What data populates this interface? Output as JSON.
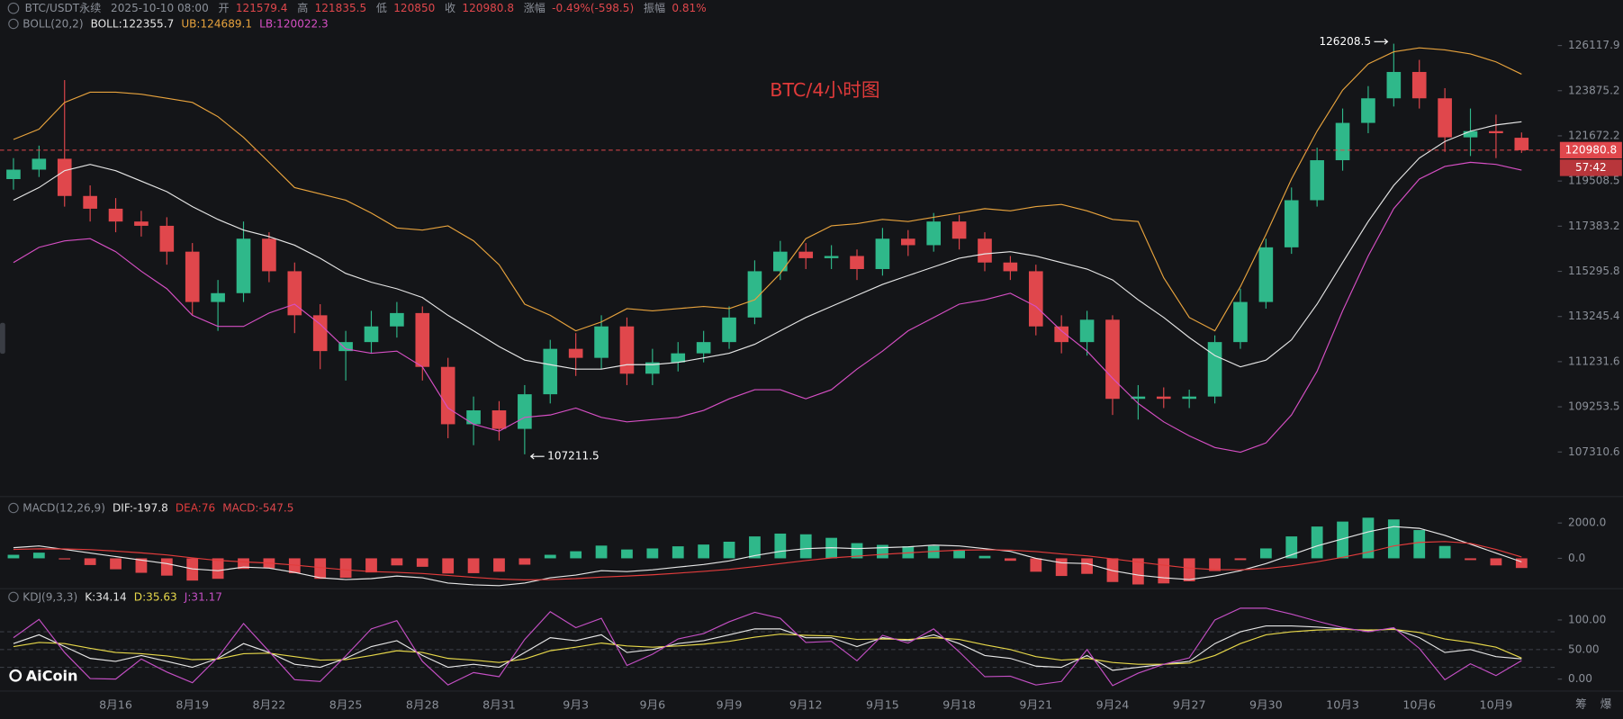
{
  "header": {
    "symbol": "BTC/USDT永续",
    "time": "2025-10-10 08:00",
    "open_label": "开",
    "high_label": "高",
    "low_label": "低",
    "close_label": "收",
    "change_label": "涨幅",
    "change": "-0.49%(-598.5)",
    "amplitude_label": "振幅",
    "amplitude": "0.81%"
  },
  "chart_data": [
    {
      "type": "candlestick",
      "title": "BTC/4小时图",
      "indicator": "BOLL(20,2)",
      "categories": [
        null,
        null,
        null,
        null,
        "8月16",
        null,
        null,
        "8月19",
        null,
        null,
        "8月22",
        null,
        null,
        "8月25",
        null,
        null,
        "8月28",
        null,
        null,
        "8月31",
        null,
        null,
        "9月3",
        null,
        null,
        "9月6",
        null,
        null,
        "9月9",
        null,
        null,
        "9月12",
        null,
        null,
        "9月15",
        null,
        null,
        "9月18",
        null,
        null,
        "9月21",
        null,
        null,
        "9月24",
        null,
        null,
        "9月27",
        null,
        null,
        "9月30",
        null,
        null,
        "10月3",
        null,
        null,
        "10月6",
        null,
        null,
        "10月9",
        null
      ],
      "open": [
        119600,
        120050,
        120570,
        118800,
        118200,
        117600,
        117400,
        116200,
        113900,
        114300,
        116800,
        115300,
        113300,
        111700,
        112100,
        112800,
        113400,
        111000,
        108500,
        109100,
        108300,
        109800,
        111800,
        111400,
        112800,
        110700,
        111200,
        111600,
        112100,
        113200,
        115300,
        116200,
        115900,
        116000,
        115400,
        116800,
        116500,
        117600,
        116800,
        115700,
        115300,
        112800,
        112100,
        113100,
        109600,
        109700,
        109600,
        109700,
        112100,
        113900,
        116400,
        118600,
        120500,
        122300,
        123500,
        124800,
        123500,
        121600,
        121900,
        121579.4
      ],
      "high": [
        120600,
        121200,
        124400,
        119300,
        118700,
        118100,
        117800,
        116600,
        114900,
        117600,
        117100,
        115700,
        113800,
        112600,
        113500,
        113900,
        113700,
        111400,
        109700,
        109500,
        110200,
        112200,
        112500,
        113300,
        113200,
        111800,
        112100,
        112600,
        113700,
        115800,
        116700,
        116600,
        116500,
        116300,
        117300,
        117200,
        118000,
        117900,
        117100,
        116000,
        115600,
        113300,
        113500,
        113300,
        110200,
        110100,
        110000,
        112400,
        114500,
        116800,
        119200,
        121100,
        123000,
        124100,
        126208.5,
        125400,
        124000,
        123000,
        122700,
        121835.5
      ],
      "low": [
        119100,
        119700,
        118300,
        117600,
        117100,
        116900,
        115600,
        113300,
        112600,
        113900,
        114800,
        112500,
        110900,
        110400,
        111600,
        112300,
        110400,
        107900,
        107600,
        107800,
        107211.5,
        109400,
        110600,
        110900,
        110200,
        110200,
        110800,
        111200,
        111800,
        112900,
        114900,
        115400,
        115400,
        114900,
        115100,
        116000,
        116200,
        116300,
        115300,
        114900,
        112400,
        111600,
        111500,
        108900,
        108700,
        109200,
        109200,
        109400,
        111800,
        113600,
        116100,
        118300,
        120000,
        121800,
        123100,
        123000,
        120900,
        120700,
        120600,
        120850.0
      ],
      "close": [
        120050,
        120570,
        118800,
        118200,
        117600,
        117400,
        116200,
        113900,
        114300,
        116800,
        115300,
        113300,
        111700,
        112100,
        112800,
        113400,
        111000,
        108500,
        109100,
        108300,
        109800,
        111800,
        111400,
        112800,
        110700,
        111200,
        111600,
        112100,
        113200,
        115300,
        116200,
        115900,
        116000,
        115400,
        116800,
        116500,
        117600,
        116800,
        115700,
        115300,
        112800,
        112100,
        113100,
        109600,
        109700,
        109600,
        109700,
        112100,
        113900,
        116400,
        118600,
        120500,
        122300,
        123500,
        124800,
        123500,
        121600,
        121900,
        121800,
        120980.8
      ],
      "up_color": "#2fb88a",
      "down_color": "#e0474c",
      "series": [
        {
          "name": "BOLL:",
          "color": "#e6e6e6",
          "values": [
            118600,
            119200,
            120000,
            120300,
            120000,
            119500,
            119000,
            118300,
            117700,
            117200,
            116900,
            116500,
            115900,
            115200,
            114800,
            114500,
            114100,
            113300,
            112600,
            111900,
            111300,
            111100,
            110900,
            110900,
            111100,
            111100,
            111200,
            111400,
            111600,
            112000,
            112600,
            113200,
            113700,
            114200,
            114700,
            115100,
            115500,
            115900,
            116100,
            116200,
            116000,
            115700,
            115400,
            114900,
            114000,
            113200,
            112300,
            111500,
            111000,
            111300,
            112200,
            113800,
            115700,
            117600,
            119300,
            120600,
            121400,
            121900,
            122200,
            122355.7
          ]
        },
        {
          "name": "UB:",
          "color": "#e8a33d",
          "values": [
            121500,
            122000,
            123300,
            123800,
            123800,
            123700,
            123500,
            123300,
            122600,
            121600,
            120400,
            119200,
            118900,
            118600,
            118000,
            117300,
            117200,
            117400,
            116700,
            115600,
            113800,
            113300,
            112600,
            113000,
            113600,
            113500,
            113600,
            113700,
            113600,
            114000,
            115200,
            116800,
            117400,
            117500,
            117700,
            117600,
            117800,
            118000,
            118200,
            118100,
            118300,
            118400,
            118100,
            117700,
            117600,
            115000,
            113200,
            112600,
            114600,
            117000,
            119600,
            121900,
            123900,
            125200,
            125800,
            126000,
            125900,
            125700,
            125300,
            124689.1
          ]
        },
        {
          "name": "LB:",
          "color": "#d64fc4",
          "values": [
            115700,
            116400,
            116700,
            116800,
            116200,
            115300,
            114500,
            113300,
            112800,
            112800,
            113400,
            113800,
            112900,
            111800,
            111600,
            111700,
            111000,
            109200,
            108500,
            108200,
            108800,
            108900,
            109200,
            108800,
            108600,
            108700,
            108800,
            109100,
            109600,
            110000,
            110000,
            109600,
            110000,
            110900,
            111700,
            112600,
            113200,
            113800,
            114000,
            114300,
            113700,
            112600,
            111700,
            110500,
            109400,
            108600,
            108000,
            107500,
            107300,
            107700,
            108900,
            110800,
            113500,
            116000,
            118200,
            119600,
            120200,
            120400,
            120300,
            120022.3
          ]
        }
      ],
      "log": true,
      "ylim": [
        105860,
        126950
      ],
      "yticks": [
        126117.9,
        123875.2,
        121672.2,
        119508.5,
        117383.2,
        115295.8,
        113245.4,
        111231.6,
        109253.5,
        107310.6
      ],
      "countdown": "57:42"
    },
    {
      "type": "macd",
      "title": "MACD(12,26,9)",
      "up_color": "#2fb88a",
      "down_color": "#e0474c",
      "series": [
        {
          "name": "DIF:",
          "color": "#e6e6e6",
          "values": [
            600,
            700,
            500,
            300,
            100,
            -100,
            -300,
            -600,
            -700,
            -500,
            -550,
            -800,
            -1100,
            -1200,
            -1150,
            -1000,
            -1100,
            -1400,
            -1500,
            -1550,
            -1400,
            -1100,
            -950,
            -700,
            -750,
            -650,
            -500,
            -350,
            -150,
            150,
            400,
            550,
            600,
            550,
            600,
            650,
            750,
            700,
            550,
            400,
            0,
            -250,
            -300,
            -700,
            -950,
            -1100,
            -1200,
            -1000,
            -700,
            -300,
            200,
            700,
            1100,
            1500,
            1800,
            1700,
            1300,
            800,
            300,
            -197.8
          ]
        },
        {
          "name": "DEA:",
          "color": "#e23c3c",
          "values": [
            500,
            540,
            530,
            490,
            410,
            310,
            190,
            30,
            -120,
            -200,
            -270,
            -380,
            -520,
            -650,
            -750,
            -800,
            -860,
            -970,
            -1080,
            -1170,
            -1220,
            -1200,
            -1150,
            -1060,
            -1000,
            -930,
            -840,
            -740,
            -620,
            -470,
            -300,
            -130,
            20,
            120,
            220,
            310,
            400,
            460,
            480,
            470,
            380,
            250,
            140,
            -30,
            -210,
            -390,
            -550,
            -640,
            -650,
            -580,
            -420,
            -200,
            60,
            350,
            700,
            900,
            950,
            850,
            500,
            76.0
          ]
        },
        {
          "name": "MACD:",
          "color": "#e0474c",
          "values": [
            200,
            320,
            -60,
            -380,
            -620,
            -820,
            -980,
            -1260,
            -1160,
            -600,
            -560,
            -840,
            -1160,
            -1100,
            -800,
            -400,
            -480,
            -860,
            -840,
            -760,
            -360,
            200,
            400,
            720,
            500,
            560,
            680,
            780,
            940,
            1240,
            1400,
            1360,
            1160,
            860,
            760,
            680,
            700,
            480,
            140,
            -140,
            -760,
            -1000,
            -880,
            -1340,
            -1480,
            -1420,
            -1300,
            -720,
            -100,
            560,
            1240,
            1800,
            2080,
            2300,
            2200,
            1600,
            700,
            -100,
            -400,
            -547.5
          ]
        }
      ],
      "ylim": [
        -1600,
        2500
      ],
      "yticks": [
        {
          "value": 2000,
          "label": "2000.0"
        },
        {
          "value": 0,
          "label": "0.0"
        }
      ]
    },
    {
      "type": "kdj",
      "title": "KDJ(9,3,3)",
      "series": [
        {
          "name": "K:",
          "color": "#e6e6e6",
          "values": [
            60,
            75,
            55,
            35,
            30,
            40,
            30,
            20,
            35,
            60,
            45,
            25,
            20,
            35,
            55,
            65,
            40,
            20,
            25,
            20,
            45,
            70,
            65,
            75,
            45,
            50,
            60,
            65,
            75,
            85,
            85,
            70,
            70,
            55,
            70,
            65,
            75,
            60,
            40,
            35,
            22,
            20,
            40,
            15,
            20,
            25,
            30,
            60,
            80,
            90,
            90,
            88,
            85,
            82,
            85,
            70,
            45,
            50,
            38,
            34.14
          ]
        },
        {
          "name": "D:",
          "color": "#e7d84a",
          "values": [
            55,
            62,
            60,
            52,
            45,
            43,
            39,
            33,
            34,
            43,
            44,
            38,
            32,
            33,
            40,
            48,
            45,
            35,
            32,
            28,
            34,
            48,
            54,
            61,
            56,
            54,
            56,
            59,
            64,
            71,
            76,
            74,
            73,
            67,
            68,
            67,
            70,
            67,
            58,
            50,
            38,
            32,
            35,
            28,
            25,
            25,
            27,
            40,
            60,
            75,
            80,
            83,
            84,
            83,
            84,
            79,
            68,
            62,
            54,
            35.63
          ]
        },
        {
          "name": "J:",
          "color": "#c44fc4",
          "values": [
            70,
            101,
            45,
            1,
            0,
            34,
            12,
            -6,
            37,
            94,
            47,
            -1,
            -4,
            39,
            85,
            99,
            30,
            -10,
            11,
            4,
            67,
            114,
            87,
            103,
            23,
            42,
            68,
            77,
            97,
            113,
            103,
            62,
            64,
            31,
            74,
            61,
            85,
            46,
            4,
            5,
            -10,
            -4,
            50,
            -11,
            10,
            25,
            36,
            100,
            120,
            120,
            110,
            98,
            87,
            80,
            87,
            52,
            -1,
            26,
            6,
            31.17
          ]
        }
      ],
      "ylim": [
        -15,
        125
      ],
      "yticks": [
        {
          "value": 100,
          "label": "100.00"
        },
        {
          "value": 50,
          "label": "50.00"
        },
        {
          "value": 0,
          "label": "0.00"
        }
      ],
      "levels": [
        20,
        50,
        80
      ]
    }
  ],
  "footer": {
    "brand": "AiCoin",
    "icons": [
      "筹",
      "爆"
    ]
  }
}
